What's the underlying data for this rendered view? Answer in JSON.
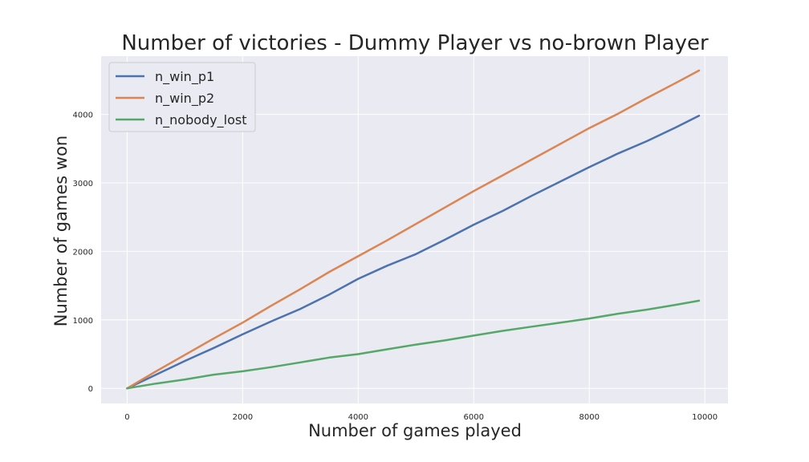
{
  "chart_data": {
    "type": "line",
    "title": "Number of victories - Dummy Player vs no-brown Player",
    "xlabel": "Number of games played",
    "ylabel": "Number of games won",
    "xlim": [
      -450,
      10400
    ],
    "ylim": [
      -220,
      4850
    ],
    "xticks": [
      0,
      2000,
      4000,
      6000,
      8000,
      10000
    ],
    "yticks": [
      0,
      1000,
      2000,
      3000,
      4000
    ],
    "grid": true,
    "legend_position": "top-left",
    "series": [
      {
        "name": "n_win_p1",
        "color": "#4c72b0",
        "x": [
          0,
          500,
          1000,
          1500,
          2000,
          2500,
          3000,
          3500,
          4000,
          4500,
          5000,
          5500,
          6000,
          6500,
          7000,
          7500,
          8000,
          8500,
          9000,
          9500,
          9900
        ],
        "y": [
          0,
          200,
          400,
          590,
          790,
          980,
          1160,
          1370,
          1600,
          1790,
          1960,
          2170,
          2390,
          2590,
          2810,
          3020,
          3230,
          3430,
          3610,
          3810,
          3980
        ]
      },
      {
        "name": "n_win_p2",
        "color": "#dd8452",
        "x": [
          0,
          500,
          1000,
          1500,
          2000,
          2500,
          3000,
          3500,
          4000,
          4500,
          5000,
          5500,
          6000,
          6500,
          7000,
          7500,
          8000,
          8500,
          9000,
          9500,
          9900
        ],
        "y": [
          0,
          250,
          490,
          730,
          960,
          1210,
          1450,
          1700,
          1930,
          2160,
          2400,
          2640,
          2880,
          3110,
          3340,
          3570,
          3800,
          4010,
          4240,
          4460,
          4640
        ]
      },
      {
        "name": "n_nobody_lost",
        "color": "#55a868",
        "x": [
          0,
          500,
          1000,
          1500,
          2000,
          2500,
          3000,
          3500,
          4000,
          4500,
          5000,
          5500,
          6000,
          6500,
          7000,
          7500,
          8000,
          8500,
          9000,
          9500,
          9900
        ],
        "y": [
          0,
          70,
          130,
          200,
          250,
          310,
          380,
          450,
          500,
          570,
          640,
          700,
          770,
          840,
          900,
          960,
          1020,
          1090,
          1150,
          1220,
          1280
        ]
      }
    ]
  }
}
